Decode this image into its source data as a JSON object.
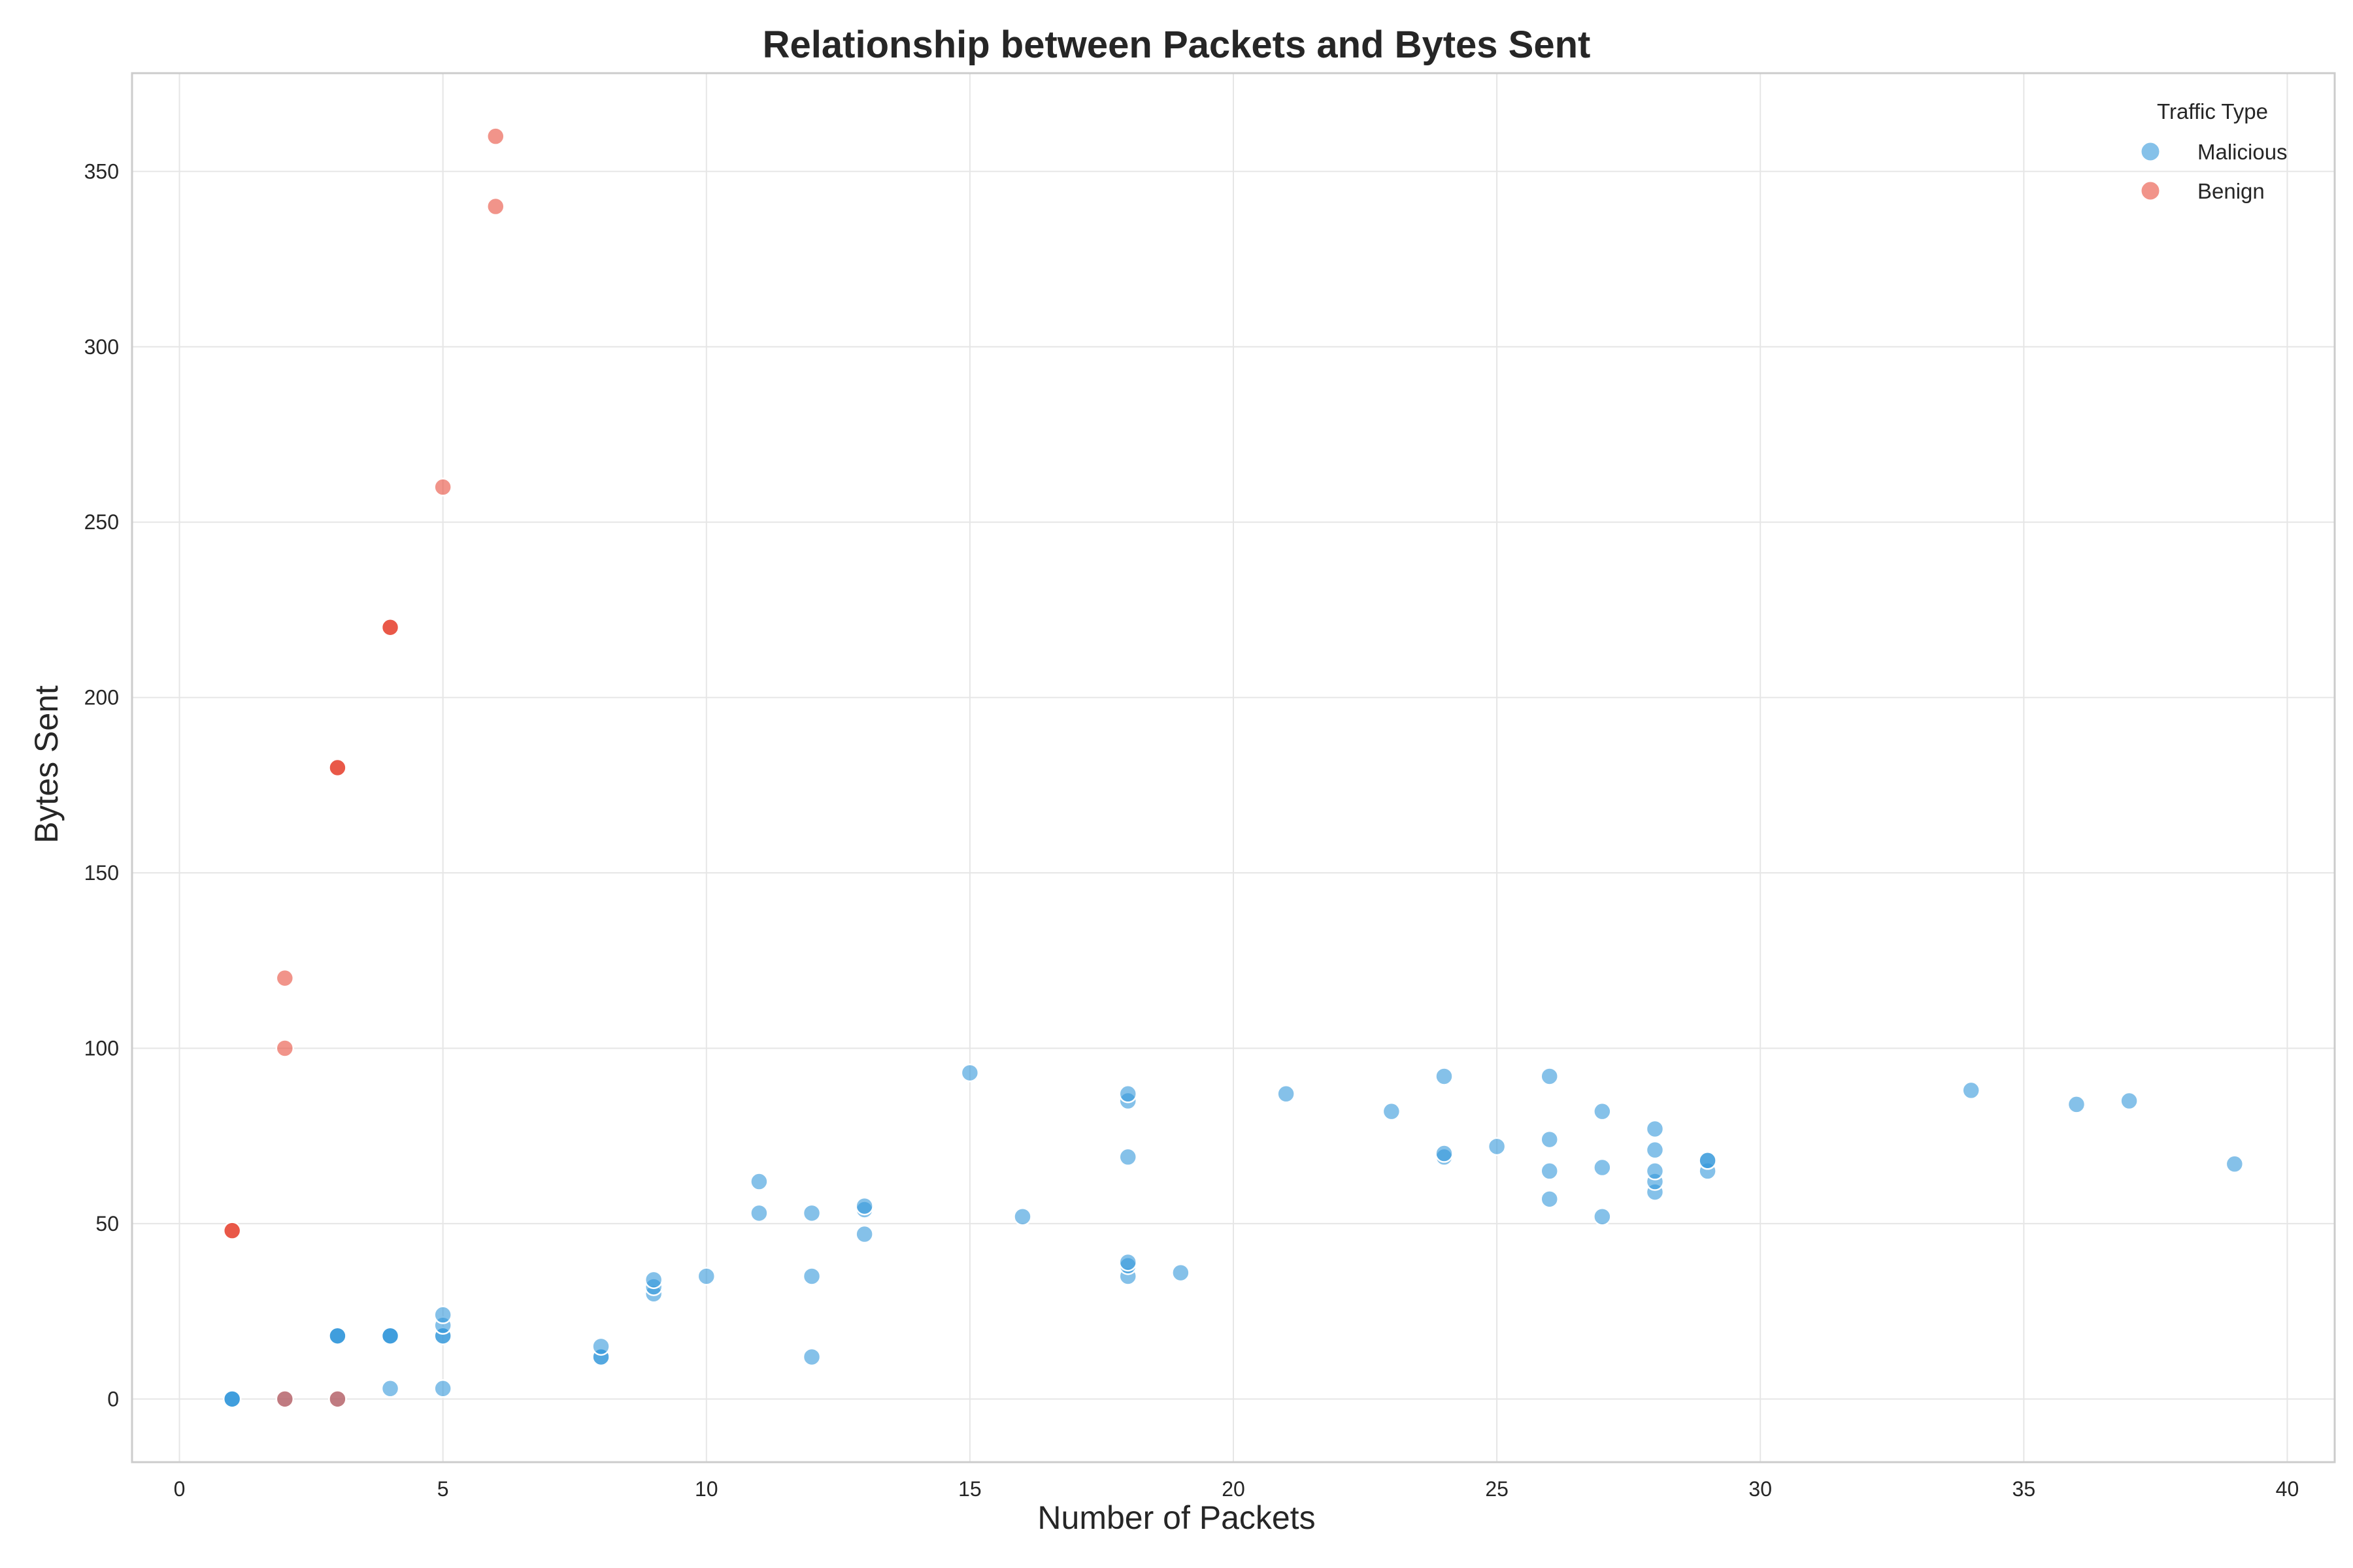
{
  "chart_data": {
    "type": "scatter",
    "title": "Relationship between Packets and Bytes Sent",
    "xlabel": "Number of Packets",
    "ylabel": "Bytes Sent",
    "xlim": [
      -0.9,
      40.9
    ],
    "ylim": [
      -18,
      378
    ],
    "xticks": [
      0,
      5,
      10,
      15,
      20,
      25,
      30,
      35,
      40
    ],
    "yticks": [
      0,
      50,
      100,
      150,
      200,
      250,
      300,
      350
    ],
    "grid": true,
    "legend": {
      "title": "Traffic Type",
      "placement": "top-right"
    },
    "series": [
      {
        "name": "Malicious",
        "color": "#3498db",
        "points": [
          [
            1,
            0
          ],
          [
            1,
            0
          ],
          [
            1,
            0
          ],
          [
            2,
            0
          ],
          [
            3,
            0
          ],
          [
            3,
            18
          ],
          [
            3,
            18
          ],
          [
            3,
            18
          ],
          [
            4,
            18
          ],
          [
            4,
            18
          ],
          [
            4,
            18
          ],
          [
            4,
            3
          ],
          [
            5,
            3
          ],
          [
            5,
            18
          ],
          [
            5,
            18
          ],
          [
            5,
            21
          ],
          [
            5,
            24
          ],
          [
            8,
            12
          ],
          [
            8,
            12
          ],
          [
            8,
            15
          ],
          [
            9,
            30
          ],
          [
            9,
            32
          ],
          [
            9,
            34
          ],
          [
            10,
            35
          ],
          [
            11,
            53
          ],
          [
            11,
            62
          ],
          [
            12,
            12
          ],
          [
            12,
            35
          ],
          [
            12,
            53
          ],
          [
            13,
            47
          ],
          [
            13,
            54
          ],
          [
            13,
            55
          ],
          [
            15,
            93
          ],
          [
            16,
            52
          ],
          [
            18,
            35
          ],
          [
            18,
            38
          ],
          [
            18,
            39
          ],
          [
            18,
            69
          ],
          [
            18,
            85
          ],
          [
            18,
            87
          ],
          [
            19,
            36
          ],
          [
            21,
            87
          ],
          [
            23,
            82
          ],
          [
            24,
            69
          ],
          [
            24,
            70
          ],
          [
            24,
            92
          ],
          [
            25,
            72
          ],
          [
            26,
            57
          ],
          [
            26,
            65
          ],
          [
            26,
            74
          ],
          [
            26,
            92
          ],
          [
            27,
            52
          ],
          [
            27,
            66
          ],
          [
            27,
            82
          ],
          [
            28,
            59
          ],
          [
            28,
            62
          ],
          [
            28,
            65
          ],
          [
            28,
            71
          ],
          [
            28,
            77
          ],
          [
            29,
            65
          ],
          [
            29,
            68
          ],
          [
            29,
            68
          ],
          [
            34,
            88
          ],
          [
            36,
            84
          ],
          [
            37,
            85
          ],
          [
            39,
            67
          ]
        ]
      },
      {
        "name": "Benign",
        "color": "#e74c3c",
        "points": [
          [
            1,
            48
          ],
          [
            1,
            48
          ],
          [
            1,
            48
          ],
          [
            2,
            0
          ],
          [
            2,
            100
          ],
          [
            2,
            120
          ],
          [
            3,
            0
          ],
          [
            3,
            180
          ],
          [
            3,
            180
          ],
          [
            3,
            180
          ],
          [
            4,
            220
          ],
          [
            4,
            220
          ],
          [
            4,
            220
          ],
          [
            5,
            260
          ],
          [
            6,
            340
          ],
          [
            6,
            360
          ]
        ]
      }
    ]
  }
}
